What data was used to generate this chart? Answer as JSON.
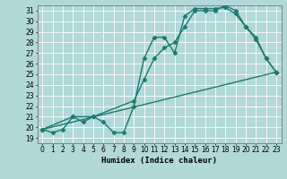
{
  "xlabel": "Humidex (Indice chaleur)",
  "ylabel": "",
  "background_color": "#b2d8d8",
  "line_color": "#1a7a6e",
  "grid_color": "#ffffff",
  "xlim": [
    -0.5,
    23.5
  ],
  "ylim": [
    18.5,
    31.5
  ],
  "xticks": [
    0,
    1,
    2,
    3,
    4,
    5,
    6,
    7,
    8,
    9,
    10,
    11,
    12,
    13,
    14,
    15,
    16,
    17,
    18,
    19,
    20,
    21,
    22,
    23
  ],
  "yticks": [
    19,
    20,
    21,
    22,
    23,
    24,
    25,
    26,
    27,
    28,
    29,
    30,
    31
  ],
  "lines": [
    {
      "x": [
        0,
        1,
        2,
        3,
        4,
        5,
        6,
        7,
        8,
        9,
        10,
        11,
        12,
        13,
        14,
        15,
        16,
        17,
        18,
        19,
        20,
        21,
        22,
        23
      ],
      "y": [
        19.8,
        19.5,
        19.8,
        21.0,
        20.5,
        21.0,
        20.5,
        19.5,
        19.5,
        22.0,
        26.5,
        28.5,
        28.5,
        27.0,
        30.5,
        31.2,
        31.2,
        31.2,
        31.3,
        30.7,
        29.5,
        28.3,
        26.5,
        25.2
      ],
      "marker": "D",
      "markersize": 2.5,
      "linewidth": 1.0
    },
    {
      "x": [
        0,
        3,
        5,
        9,
        10,
        11,
        12,
        13,
        14,
        15,
        16,
        17,
        18,
        19,
        20,
        21,
        22,
        23
      ],
      "y": [
        19.8,
        21.0,
        21.0,
        22.5,
        24.5,
        26.5,
        27.5,
        28.0,
        29.5,
        31.0,
        31.0,
        31.0,
        31.5,
        31.0,
        29.5,
        28.5,
        26.5,
        25.2
      ],
      "marker": "D",
      "markersize": 2.5,
      "linewidth": 1.0
    },
    {
      "x": [
        0,
        23
      ],
      "y": [
        19.8,
        25.2
      ],
      "marker": "D",
      "markersize": 2.5,
      "linewidth": 1.0
    }
  ],
  "figsize": [
    3.2,
    2.0
  ],
  "dpi": 100
}
